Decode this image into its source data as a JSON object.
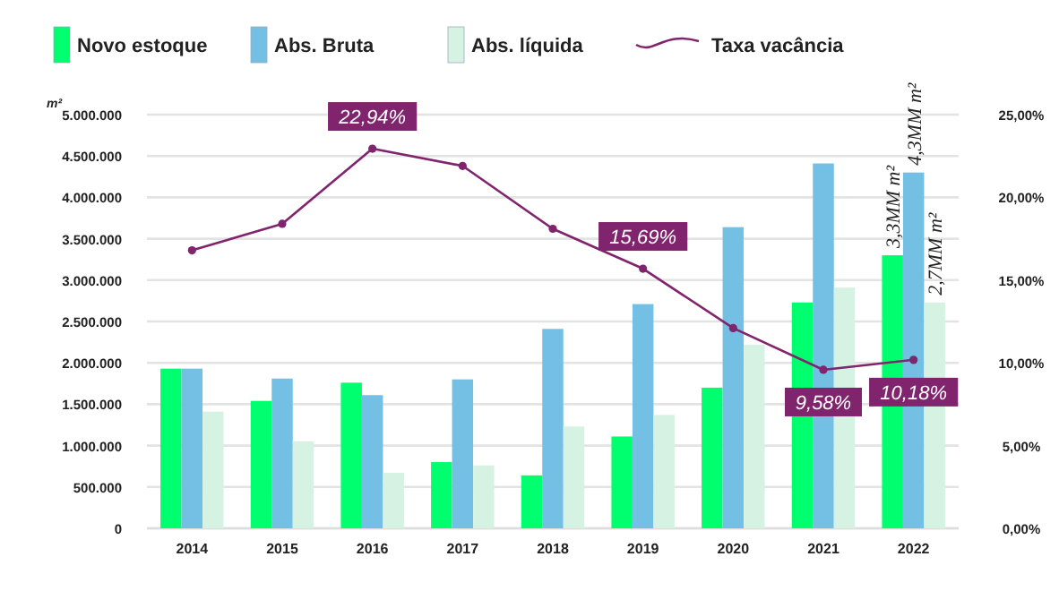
{
  "chart_data": {
    "type": "bar",
    "ylabel": "m²",
    "categories": [
      "2014",
      "2015",
      "2016",
      "2017",
      "2018",
      "2019",
      "2020",
      "2021",
      "2022"
    ],
    "series": [
      {
        "name": "Novo estoque",
        "color": "#00ff6e",
        "values": [
          1930000,
          1540000,
          1760000,
          800000,
          640000,
          1110000,
          1700000,
          2730000,
          3300000
        ]
      },
      {
        "name": "Abs. Bruta",
        "color": "#74c0e4",
        "values": [
          1930000,
          1810000,
          1610000,
          1800000,
          2410000,
          2710000,
          3640000,
          4410000,
          4300000
        ]
      },
      {
        "name": "Abs. líquida",
        "color": "#d5f2e3",
        "values": [
          1410000,
          1050000,
          670000,
          760000,
          1230000,
          1370000,
          2220000,
          2910000,
          2730000
        ]
      },
      {
        "name": "Taxa vacância",
        "type": "line",
        "axis": "y2",
        "color": "#80246e",
        "values": [
          16.8,
          18.4,
          22.94,
          21.9,
          18.1,
          15.69,
          12.1,
          9.58,
          10.18
        ],
        "value_labels": [
          null,
          null,
          "22,94%",
          null,
          null,
          "15,69%",
          null,
          "9,58%",
          "10,18%"
        ]
      }
    ],
    "annotations": [
      "3,3MM m²",
      "4,3MM m²",
      "2,7MM m²"
    ],
    "ylim": [
      0,
      5000000
    ],
    "yticks": [
      {
        "value": 0,
        "label": "0"
      },
      {
        "value": 500000,
        "label": "500.000"
      },
      {
        "value": 1000000,
        "label": "1.000.000"
      },
      {
        "value": 1500000,
        "label": "1.500.000"
      },
      {
        "value": 2000000,
        "label": "2.000.000"
      },
      {
        "value": 2500000,
        "label": "2.500.000"
      },
      {
        "value": 3000000,
        "label": "3.000.000"
      },
      {
        "value": 3500000,
        "label": "3.500.000"
      },
      {
        "value": 4000000,
        "label": "4.000.000"
      },
      {
        "value": 4500000,
        "label": "4.500.000"
      },
      {
        "value": 5000000,
        "label": "5.000.000"
      }
    ],
    "y2lim": [
      0,
      25
    ],
    "y2ticks": [
      {
        "value": 0,
        "label": "0,00%"
      },
      {
        "value": 5,
        "label": "5,00%"
      },
      {
        "value": 10,
        "label": "10,00%"
      },
      {
        "value": 15,
        "label": "15,00%"
      },
      {
        "value": 20,
        "label": "20,00%"
      },
      {
        "value": 25,
        "label": "25,00%"
      }
    ],
    "grid": "y",
    "legend": "top",
    "marker": "circle",
    "line_style": "solid"
  }
}
